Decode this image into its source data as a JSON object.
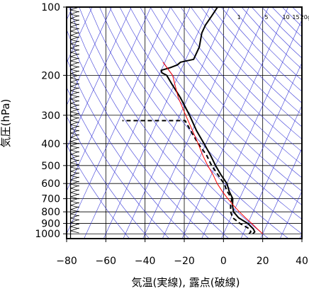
{
  "chart_data": {
    "type": "line",
    "title": "",
    "xlabel": "気温(実線), 露点(破線)",
    "ylabel": "気圧(hPa)",
    "xlim": [
      -80,
      40
    ],
    "ylim": [
      1050,
      100
    ],
    "y_scale": "log",
    "x_ticks": [
      -80,
      -60,
      -40,
      -20,
      0,
      20,
      40
    ],
    "x_tick_labels": [
      "−80",
      "−60",
      "−40",
      "−20",
      "0",
      "20",
      "40"
    ],
    "y_ticks": [
      100,
      200,
      300,
      400,
      500,
      600,
      700,
      800,
      900,
      1000
    ],
    "y_tick_labels": [
      "100",
      "200",
      "300",
      "400",
      "500",
      "600",
      "700",
      "800",
      "900",
      "1000"
    ],
    "grid": true,
    "skew_deg_per_decade": 53,
    "mixing_ratio_labels": [
      "1",
      "5",
      "10",
      "15",
      "20g"
    ],
    "mixing_ratio_values": [
      1,
      5,
      10,
      15,
      20
    ],
    "colors": {
      "temperature": "#000000",
      "dewpoint": "#000000",
      "parcel": "#ff0000",
      "adiabats": "#3a3ad8",
      "grid": "#000000",
      "wind": "#000000"
    },
    "series": [
      {
        "key": "temperature",
        "style": "solid",
        "points": [
          [
            1000,
            15
          ],
          [
            980,
            15.5
          ],
          [
            950,
            14
          ],
          [
            925,
            12
          ],
          [
            900,
            10
          ],
          [
            850,
            4
          ],
          [
            800,
            0
          ],
          [
            750,
            -2
          ],
          [
            700,
            -3.5
          ],
          [
            650,
            -7
          ],
          [
            600,
            -10
          ],
          [
            550,
            -15
          ],
          [
            500,
            -20
          ],
          [
            450,
            -25
          ],
          [
            400,
            -31
          ],
          [
            350,
            -38
          ],
          [
            300,
            -45
          ],
          [
            250,
            -54
          ],
          [
            220,
            -61
          ],
          [
            200,
            -66
          ],
          [
            195,
            -69
          ],
          [
            190,
            -70
          ],
          [
            185,
            -66
          ],
          [
            180,
            -63
          ],
          [
            175,
            -62
          ],
          [
            170,
            -56
          ],
          [
            150,
            -56
          ],
          [
            130,
            -58
          ],
          [
            120,
            -58
          ],
          [
            110,
            -57
          ],
          [
            100,
            -56
          ]
        ]
      },
      {
        "key": "dewpoint",
        "style": "dashed",
        "points": [
          [
            1000,
            13
          ],
          [
            980,
            13.5
          ],
          [
            950,
            12
          ],
          [
            925,
            9
          ],
          [
            900,
            6
          ],
          [
            850,
            1
          ],
          [
            800,
            -1.5
          ],
          [
            750,
            -3
          ],
          [
            700,
            -4
          ],
          [
            650,
            -8
          ],
          [
            600,
            -11.5
          ],
          [
            550,
            -16.5
          ],
          [
            500,
            -22
          ],
          [
            450,
            -27
          ],
          [
            400,
            -34
          ],
          [
            350,
            -41
          ],
          [
            317,
            -46
          ],
          [
            317,
            -78
          ]
        ]
      },
      {
        "key": "parcel",
        "style": "solid",
        "points": [
          [
            1000,
            20
          ],
          [
            950,
            16
          ],
          [
            900,
            12
          ],
          [
            850,
            7.5
          ],
          [
            800,
            3
          ],
          [
            750,
            -1.5
          ],
          [
            700,
            -6
          ],
          [
            650,
            -10.5
          ],
          [
            600,
            -15
          ],
          [
            550,
            -19
          ],
          [
            500,
            -24
          ],
          [
            450,
            -29
          ],
          [
            400,
            -34
          ],
          [
            350,
            -40
          ],
          [
            300,
            -47
          ],
          [
            250,
            -55
          ],
          [
            200,
            -63
          ],
          [
            175,
            -71
          ]
        ]
      }
    ],
    "wind_barbs_x": -78
  }
}
